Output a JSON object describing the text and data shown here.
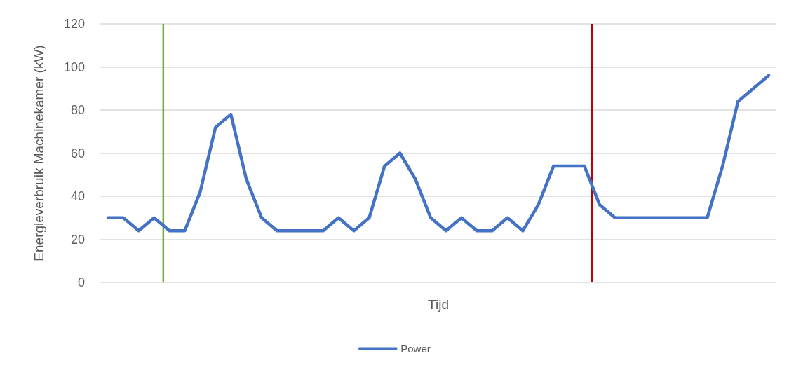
{
  "chart_data": {
    "type": "line",
    "xlabel": "Tijd",
    "ylabel": "Energieverbruik Machinekamer (kW)",
    "categories": [
      null,
      null,
      null,
      null,
      null,
      null,
      null,
      null,
      null,
      null,
      null,
      null,
      null,
      null,
      null,
      null,
      null,
      null,
      null,
      null,
      null,
      null,
      null,
      null,
      null,
      null,
      null,
      null,
      null,
      null,
      null,
      null,
      null,
      null,
      null,
      null,
      null,
      null,
      null,
      null,
      null,
      null,
      null,
      null
    ],
    "series": [
      {
        "name": "Power",
        "color": "#4472c4",
        "values": [
          30,
          30,
          24,
          30,
          24,
          24,
          42,
          72,
          78,
          48,
          30,
          24,
          24,
          24,
          24,
          30,
          24,
          30,
          54,
          60,
          48,
          30,
          24,
          30,
          24,
          24,
          30,
          24,
          36,
          54,
          54,
          54,
          36,
          30,
          30,
          30,
          30,
          30,
          30,
          30,
          54,
          84,
          90,
          96
        ]
      }
    ],
    "ylim": [
      0,
      120
    ],
    "yticks": [
      0,
      20,
      40,
      60,
      80,
      100,
      120
    ],
    "grid": "y",
    "legend": "bottom",
    "marker": "none",
    "line_style": "solid"
  }
}
